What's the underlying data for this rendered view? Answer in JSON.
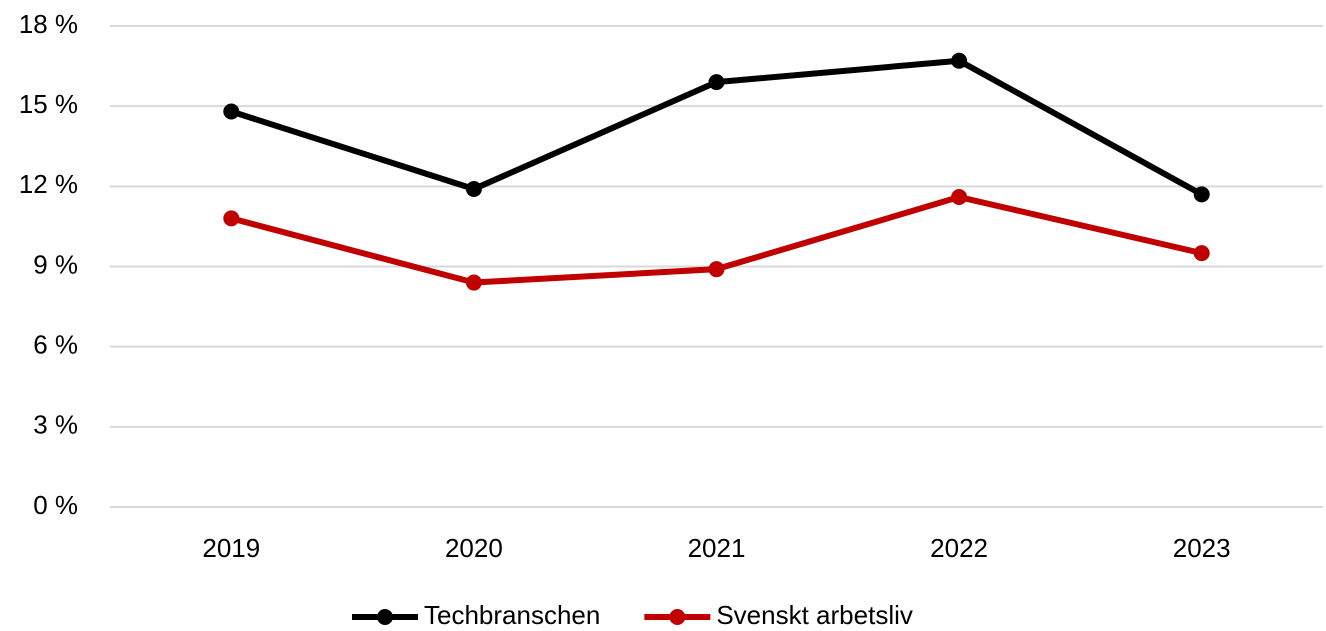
{
  "chart_data": {
    "type": "line",
    "categories": [
      "2019",
      "2020",
      "2021",
      "2022",
      "2023"
    ],
    "series": [
      {
        "name": "Techbranschen",
        "color": "#000000",
        "values": [
          14.8,
          11.9,
          15.9,
          16.7,
          11.7
        ]
      },
      {
        "name": "Svenskt arbetsliv",
        "color": "#c00000",
        "values": [
          10.8,
          8.4,
          8.9,
          11.6,
          9.5
        ]
      }
    ],
    "ylim": [
      0,
      18
    ],
    "yticks": [
      {
        "value": 0,
        "label": "0 %"
      },
      {
        "value": 3,
        "label": "3 %"
      },
      {
        "value": 6,
        "label": "6 %"
      },
      {
        "value": 9,
        "label": "9 %"
      },
      {
        "value": 12,
        "label": "12 %"
      },
      {
        "value": 15,
        "label": "15 %"
      },
      {
        "value": 18,
        "label": "18 %"
      }
    ],
    "grid": true,
    "legend": "bottom"
  }
}
